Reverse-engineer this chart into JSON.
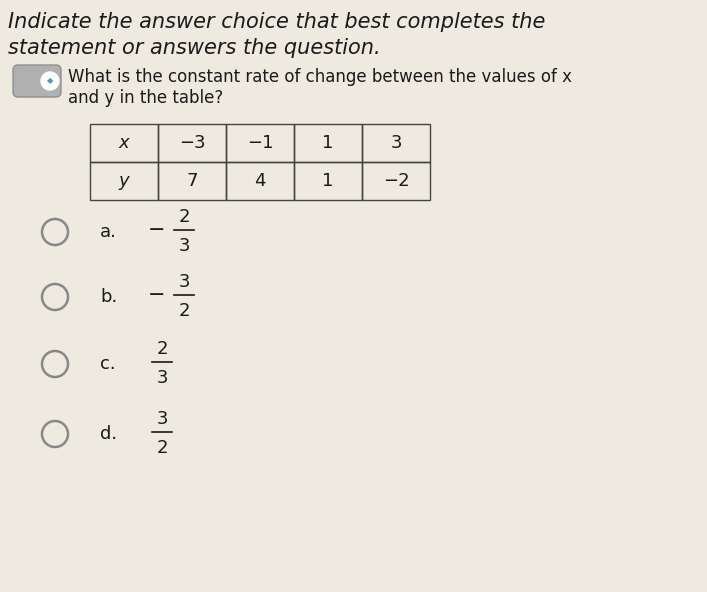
{
  "title_line1": "Indicate the answer choice that best completes the",
  "title_line2": "statement or answers the question.",
  "question_line1": "What is the constant rate of change between the values of x",
  "question_line2": "and y in the table?",
  "table_col_labels": [
    "x",
    "−3",
    "−1",
    "1",
    "3"
  ],
  "table_row2_labels": [
    "y",
    "7",
    "4",
    "1",
    "−2"
  ],
  "choices": [
    {
      "label": "a.",
      "num": "2",
      "den": "3",
      "negative": true
    },
    {
      "label": "b.",
      "num": "3",
      "den": "2",
      "negative": true
    },
    {
      "label": "c.",
      "num": "2",
      "den": "3",
      "negative": false
    },
    {
      "label": "d.",
      "num": "3",
      "den": "2",
      "negative": false
    }
  ],
  "bg_color": "#eeeae0",
  "text_color": "#1a1a1a",
  "table_border_color": "#444444",
  "radio_color": "#888888"
}
